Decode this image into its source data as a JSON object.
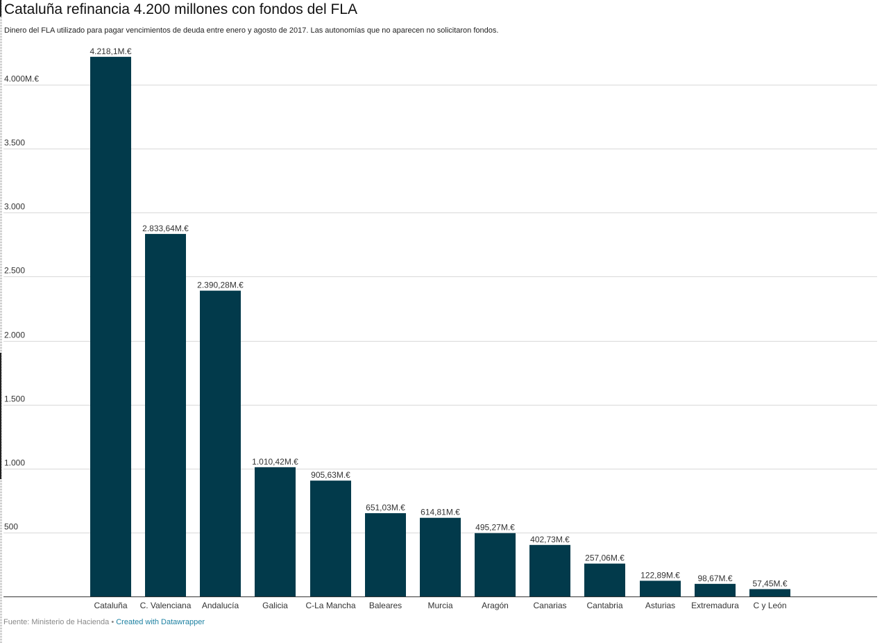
{
  "header": {
    "title": "Cataluña refinancia 4.200 millones con fondos del FLA",
    "subtitle": "Dinero del FLA utilizado para pagar vencimientos de deuda entre enero y agosto de 2017. Las autonomías que no aparecen no solicitaron fondos."
  },
  "footer": {
    "source": "Fuente: Ministerio de Hacienda",
    "separator": "•",
    "credit_link": "Created with Datawrapper"
  },
  "colors": {
    "bar": "#023a4b",
    "grid": "#d9d9d9",
    "axis": "#333333",
    "label": "#333333",
    "link": "#1d81a2"
  },
  "chart_data": {
    "type": "bar",
    "title": "Cataluña refinancia 4.200 millones con fondos del FLA",
    "xlabel": "",
    "ylabel": "",
    "ylim": [
      0,
      4250
    ],
    "grid": true,
    "legend": "none",
    "categories": [
      "Cataluña",
      "C. Valenciana",
      "Andalucía",
      "Galicia",
      "C-La Mancha",
      "Baleares",
      "Murcia",
      "Aragón",
      "Canarias",
      "Cantabria",
      "Asturias",
      "Extremadura",
      "C y León"
    ],
    "values": [
      4218.1,
      2833.64,
      2390.28,
      1010.42,
      905.63,
      651.03,
      614.81,
      495.27,
      402.73,
      257.06,
      122.89,
      98.67,
      57.45
    ],
    "value_labels": [
      "4.218,1M.€",
      "2.833,64M.€",
      "2.390,28M.€",
      "1.010,42M.€",
      "905,63M.€",
      "651,03M.€",
      "614,81M.€",
      "495,27M.€",
      "402,73M.€",
      "257,06M.€",
      "122,89M.€",
      "98,67M.€",
      "57,45M.€"
    ],
    "yticks": [
      500,
      1000,
      1500,
      2000,
      2500,
      3000,
      3500,
      4000
    ],
    "ytick_labels": [
      "500",
      "1.000",
      "1.500",
      "2.000",
      "2.500",
      "3.000",
      "3.500",
      "4.000M.€"
    ]
  }
}
